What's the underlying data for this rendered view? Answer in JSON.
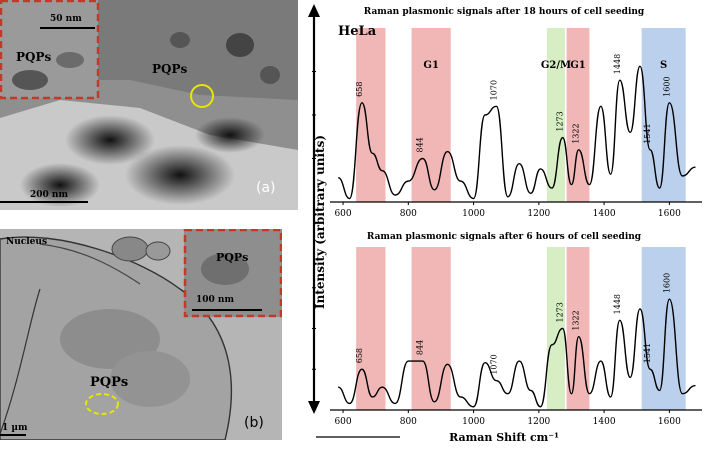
{
  "tem_a": {
    "scale_main": "200 nm",
    "scale_inset": "50 nm",
    "label_inset": "PQPs",
    "label_main": "PQPs",
    "panel": "(a)"
  },
  "tem_b": {
    "nucleus": "Nucleus",
    "label_inset": "PQPs",
    "scale_inset": "100 nm",
    "label_main": "PQPs",
    "scale_main": "1 µm",
    "panel": "(b)"
  },
  "colors": {
    "g1_band": "#e88a8a",
    "g2m_band": "#bfe3a0",
    "s_band": "#8fb3e0",
    "inset_border": "#c0392b",
    "circle_marker": "#e6e600"
  },
  "chart_data": [
    {
      "type": "line",
      "title": "Raman plasmonic signals after 18 hours of cell seeding",
      "cell_line": "HeLa",
      "xlabel": "Raman Shift cm⁻¹",
      "ylabel": "Intensity (arbitrary units)",
      "xlim": [
        560,
        1700
      ],
      "xticks": [
        600,
        800,
        1000,
        1200,
        1400,
        1600
      ],
      "ylim": [
        0,
        1
      ],
      "bands": [
        {
          "label": "",
          "from": 640,
          "to": 730,
          "color": "#e88a8a"
        },
        {
          "label": "G1",
          "from": 810,
          "to": 930,
          "color": "#e88a8a"
        },
        {
          "label": "G2/M",
          "from": 1225,
          "to": 1280,
          "color": "#bfe3a0"
        },
        {
          "label": "G1",
          "from": 1285,
          "to": 1355,
          "color": "#e88a8a"
        },
        {
          "label": "S",
          "from": 1515,
          "to": 1650,
          "color": "#8fb3e0"
        }
      ],
      "peak_labels": [
        {
          "x": 658,
          "text": "658"
        },
        {
          "x": 844,
          "text": "844"
        },
        {
          "x": 1070,
          "text": "1070"
        },
        {
          "x": 1273,
          "text": "1273"
        },
        {
          "x": 1322,
          "text": "1322"
        },
        {
          "x": 1448,
          "text": "1448"
        },
        {
          "x": 1541,
          "text": "1541"
        },
        {
          "x": 1600,
          "text": "1600"
        }
      ],
      "series": [
        {
          "x": [
            585,
            620,
            658,
            690,
            720,
            760,
            800,
            844,
            880,
            920,
            960,
            1000,
            1035,
            1070,
            1105,
            1140,
            1175,
            1205,
            1240,
            1273,
            1300,
            1322,
            1355,
            1390,
            1420,
            1448,
            1480,
            1510,
            1541,
            1570,
            1600,
            1640,
            1680
          ],
          "y": [
            0.14,
            0.02,
            0.57,
            0.28,
            0.18,
            0.04,
            0.12,
            0.25,
            0.07,
            0.29,
            0.12,
            0.02,
            0.5,
            0.55,
            0.03,
            0.22,
            0.05,
            0.19,
            0.08,
            0.37,
            0.1,
            0.3,
            0.1,
            0.55,
            0.16,
            0.7,
            0.4,
            0.78,
            0.3,
            0.08,
            0.57,
            0.15,
            0.2
          ]
        }
      ]
    },
    {
      "type": "line",
      "title": "Raman plasmonic signals after 6 hours of cell seeding",
      "xlabel": "Raman Shift cm⁻¹",
      "ylabel": "Intensity (arbitrary units)",
      "xlim": [
        560,
        1700
      ],
      "xticks": [
        600,
        800,
        1000,
        1200,
        1400,
        1600
      ],
      "ylim": [
        0,
        1
      ],
      "bands": [
        {
          "label": "",
          "from": 640,
          "to": 730,
          "color": "#e88a8a"
        },
        {
          "label": "",
          "from": 810,
          "to": 930,
          "color": "#e88a8a"
        },
        {
          "label": "",
          "from": 1225,
          "to": 1280,
          "color": "#bfe3a0"
        },
        {
          "label": "",
          "from": 1285,
          "to": 1355,
          "color": "#e88a8a"
        },
        {
          "label": "",
          "from": 1515,
          "to": 1650,
          "color": "#8fb3e0"
        }
      ],
      "peak_labels": [
        {
          "x": 658,
          "text": "658"
        },
        {
          "x": 844,
          "text": "844"
        },
        {
          "x": 1070,
          "text": "1070"
        },
        {
          "x": 1273,
          "text": "1273"
        },
        {
          "x": 1322,
          "text": "1322"
        },
        {
          "x": 1448,
          "text": "1448"
        },
        {
          "x": 1541,
          "text": "1541"
        },
        {
          "x": 1600,
          "text": "1600"
        }
      ],
      "series": [
        {
          "x": [
            585,
            620,
            658,
            690,
            720,
            760,
            800,
            844,
            880,
            920,
            960,
            1000,
            1035,
            1070,
            1105,
            1140,
            1175,
            1205,
            1240,
            1273,
            1300,
            1322,
            1355,
            1390,
            1420,
            1448,
            1480,
            1510,
            1541,
            1570,
            1600,
            1640,
            1680
          ],
          "y": [
            0.14,
            0.04,
            0.25,
            0.08,
            0.14,
            0.04,
            0.3,
            0.3,
            0.05,
            0.28,
            0.08,
            0.02,
            0.29,
            0.18,
            0.1,
            0.3,
            0.12,
            0.02,
            0.4,
            0.5,
            0.1,
            0.45,
            0.1,
            0.3,
            0.08,
            0.55,
            0.2,
            0.62,
            0.25,
            0.12,
            0.68,
            0.1,
            0.15
          ]
        }
      ]
    }
  ]
}
